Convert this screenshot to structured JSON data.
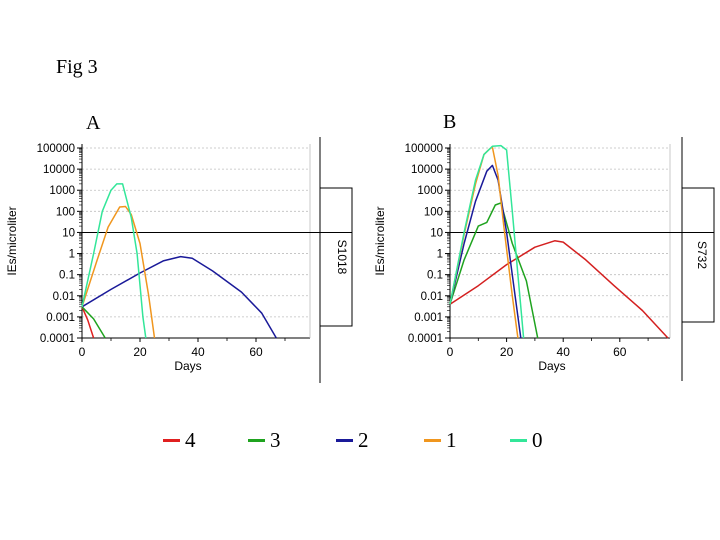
{
  "figure": {
    "title": "Fig 3",
    "legend_title": "",
    "legend": [
      {
        "label": "4",
        "color": "#e02020"
      },
      {
        "label": "3",
        "color": "#1fa31f"
      },
      {
        "label": "2",
        "color": "#1a1a99"
      },
      {
        "label": "1",
        "color": "#f0961e"
      },
      {
        "label": "0",
        "color": "#33e699"
      }
    ]
  },
  "chart_data": [
    {
      "type": "line",
      "panel": "A",
      "side_label": "S1018",
      "xlabel": "Days",
      "ylabel": "IEs/microliter",
      "xlim": [
        0,
        75
      ],
      "ylim": [
        0.0001,
        100000
      ],
      "yscale": "log",
      "xticks": [
        "0",
        "20",
        "40",
        "60"
      ],
      "yticks": [
        "100000",
        "10000",
        "1000",
        "100",
        "10",
        "1",
        "0.1",
        "0.01",
        "0.001",
        "0.0001"
      ],
      "reference_line_y": 10,
      "series": [
        {
          "name": "4",
          "color": "#e02020",
          "points": [
            [
              0,
              0.003
            ],
            [
              2,
              0.0007
            ],
            [
              4,
              0.0001
            ]
          ]
        },
        {
          "name": "3",
          "color": "#1fa31f",
          "points": [
            [
              0,
              0.003
            ],
            [
              4,
              0.0008
            ],
            [
              8,
              0.0001
            ]
          ]
        },
        {
          "name": "2",
          "color": "#1a1a99",
          "points": [
            [
              0,
              0.003
            ],
            [
              10,
              0.02
            ],
            [
              20,
              0.12
            ],
            [
              28,
              0.45
            ],
            [
              34,
              0.72
            ],
            [
              38,
              0.6
            ],
            [
              45,
              0.15
            ],
            [
              55,
              0.015
            ],
            [
              62,
              0.0015
            ],
            [
              67,
              0.0001
            ]
          ]
        },
        {
          "name": "1",
          "color": "#f0961e",
          "points": [
            [
              0,
              0.003
            ],
            [
              5,
              0.4
            ],
            [
              9,
              18
            ],
            [
              13,
              160
            ],
            [
              15,
              170
            ],
            [
              17,
              70
            ],
            [
              20,
              3
            ],
            [
              23,
              0.01
            ],
            [
              25,
              0.0001
            ]
          ]
        },
        {
          "name": "0",
          "color": "#33e699",
          "points": [
            [
              0,
              0.003
            ],
            [
              4,
              1
            ],
            [
              7,
              100
            ],
            [
              10,
              1000
            ],
            [
              12,
              2000
            ],
            [
              14,
              2000
            ],
            [
              17,
              50
            ],
            [
              19,
              1
            ],
            [
              21,
              0.001
            ],
            [
              22,
              0.0001
            ]
          ]
        }
      ]
    },
    {
      "type": "line",
      "panel": "B",
      "side_label": "S732",
      "xlabel": "Days",
      "ylabel": "IEs/microliter",
      "xlim": [
        0,
        80
      ],
      "ylim": [
        0.0001,
        100000
      ],
      "yscale": "log",
      "xticks": [
        "0",
        "20",
        "40",
        "60"
      ],
      "yticks": [
        "100000",
        "10000",
        "1000",
        "100",
        "10",
        "1",
        "0.1",
        "0.01",
        "0.001",
        "0.0001"
      ],
      "reference_line_y": 10,
      "series": [
        {
          "name": "4",
          "color": "#d42020",
          "points": [
            [
              0,
              0.004
            ],
            [
              10,
              0.03
            ],
            [
              20,
              0.3
            ],
            [
              30,
              2
            ],
            [
              37,
              4
            ],
            [
              40,
              3.5
            ],
            [
              48,
              0.5
            ],
            [
              58,
              0.03
            ],
            [
              68,
              0.002
            ],
            [
              77,
              0.0001
            ]
          ]
        },
        {
          "name": "3",
          "color": "#1fa31f",
          "points": [
            [
              0,
              0.004
            ],
            [
              5,
              0.5
            ],
            [
              10,
              20
            ],
            [
              13,
              30
            ],
            [
              16,
              200
            ],
            [
              18,
              250
            ],
            [
              22,
              3
            ],
            [
              27,
              0.05
            ],
            [
              31,
              0.0001
            ]
          ]
        },
        {
          "name": "2",
          "color": "#1a1a99",
          "points": [
            [
              0,
              0.004
            ],
            [
              5,
              3
            ],
            [
              9,
              300
            ],
            [
              13,
              8000
            ],
            [
              15,
              15000
            ],
            [
              17,
              3000
            ],
            [
              20,
              10
            ],
            [
              23,
              0.01
            ],
            [
              25,
              0.0001
            ]
          ]
        },
        {
          "name": "1",
          "color": "#f0961e",
          "points": [
            [
              0,
              0.004
            ],
            [
              5,
              8
            ],
            [
              9,
              2000
            ],
            [
              12,
              50000
            ],
            [
              14,
              90000
            ],
            [
              15,
              110000
            ],
            [
              17,
              5000
            ],
            [
              19,
              20
            ],
            [
              22,
              0.01
            ],
            [
              24,
              0.0001
            ]
          ]
        },
        {
          "name": "0",
          "color": "#33e699",
          "points": [
            [
              0,
              0.004
            ],
            [
              5,
              10
            ],
            [
              9,
              3000
            ],
            [
              12,
              50000
            ],
            [
              15,
              120000
            ],
            [
              18,
              130000
            ],
            [
              20,
              80000
            ],
            [
              22,
              100
            ],
            [
              24,
              0.1
            ],
            [
              26,
              0.0001
            ]
          ]
        }
      ]
    }
  ]
}
